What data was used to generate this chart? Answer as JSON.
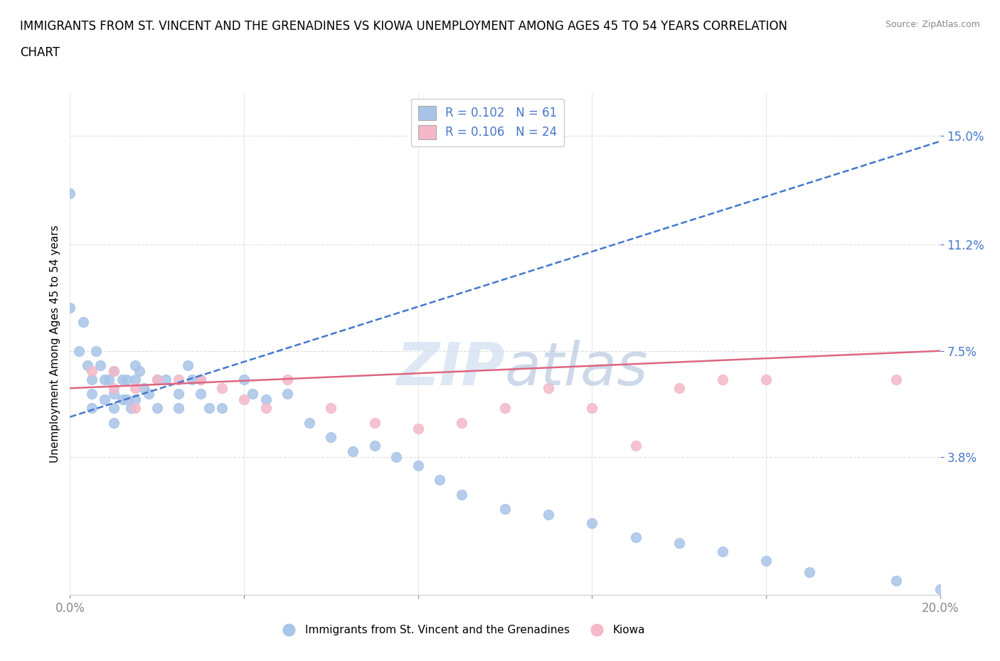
{
  "title_line1": "IMMIGRANTS FROM ST. VINCENT AND THE GRENADINES VS KIOWA UNEMPLOYMENT AMONG AGES 45 TO 54 YEARS CORRELATION",
  "title_line2": "CHART",
  "source": "Source: ZipAtlas.com",
  "ylabel": "Unemployment Among Ages 45 to 54 years",
  "xlim": [
    0.0,
    0.2
  ],
  "ylim": [
    -0.01,
    0.165
  ],
  "ytick_positions": [
    0.038,
    0.075,
    0.112,
    0.15
  ],
  "ytick_labels": [
    "3.8%",
    "7.5%",
    "11.2%",
    "15.0%"
  ],
  "legend1_label": "R = 0.102   N = 61",
  "legend2_label": "R = 0.106   N = 24",
  "legend_bottom_label1": "Immigrants from St. Vincent and the Grenadines",
  "legend_bottom_label2": "Kiowa",
  "blue_color": "#a8c4e8",
  "pink_color": "#f4b8c8",
  "blue_line_color": "#4477cc",
  "pink_line_color": "#dd6680",
  "watermark_color": "#d0dff0",
  "blue_line_start_y": 0.052,
  "blue_line_end_y": 0.148,
  "pink_line_start_y": 0.062,
  "pink_line_end_y": 0.075,
  "blue_scatter_x": [
    0.0,
    0.0,
    0.002,
    0.003,
    0.004,
    0.005,
    0.005,
    0.005,
    0.006,
    0.007,
    0.008,
    0.008,
    0.009,
    0.01,
    0.01,
    0.01,
    0.01,
    0.012,
    0.012,
    0.013,
    0.013,
    0.014,
    0.015,
    0.015,
    0.015,
    0.016,
    0.017,
    0.018,
    0.02,
    0.02,
    0.022,
    0.025,
    0.025,
    0.027,
    0.028,
    0.03,
    0.03,
    0.032,
    0.035,
    0.04,
    0.042,
    0.045,
    0.05,
    0.055,
    0.06,
    0.065,
    0.07,
    0.075,
    0.08,
    0.085,
    0.09,
    0.1,
    0.11,
    0.12,
    0.13,
    0.14,
    0.15,
    0.16,
    0.17,
    0.19,
    0.2
  ],
  "blue_scatter_y": [
    0.13,
    0.09,
    0.075,
    0.085,
    0.07,
    0.065,
    0.06,
    0.055,
    0.075,
    0.07,
    0.065,
    0.058,
    0.065,
    0.068,
    0.06,
    0.055,
    0.05,
    0.065,
    0.058,
    0.065,
    0.058,
    0.055,
    0.07,
    0.065,
    0.058,
    0.068,
    0.062,
    0.06,
    0.065,
    0.055,
    0.065,
    0.06,
    0.055,
    0.07,
    0.065,
    0.065,
    0.06,
    0.055,
    0.055,
    0.065,
    0.06,
    0.058,
    0.06,
    0.05,
    0.045,
    0.04,
    0.042,
    0.038,
    0.035,
    0.03,
    0.025,
    0.02,
    0.018,
    0.015,
    0.01,
    0.008,
    0.005,
    0.002,
    -0.002,
    -0.005,
    -0.008
  ],
  "pink_scatter_x": [
    0.005,
    0.01,
    0.01,
    0.015,
    0.015,
    0.02,
    0.025,
    0.03,
    0.035,
    0.04,
    0.045,
    0.05,
    0.06,
    0.07,
    0.08,
    0.09,
    0.1,
    0.11,
    0.12,
    0.13,
    0.14,
    0.15,
    0.16,
    0.19
  ],
  "pink_scatter_y": [
    0.068,
    0.068,
    0.062,
    0.062,
    0.055,
    0.065,
    0.065,
    0.065,
    0.062,
    0.058,
    0.055,
    0.065,
    0.055,
    0.05,
    0.048,
    0.05,
    0.055,
    0.062,
    0.055,
    0.042,
    0.062,
    0.065,
    0.065,
    0.065
  ]
}
